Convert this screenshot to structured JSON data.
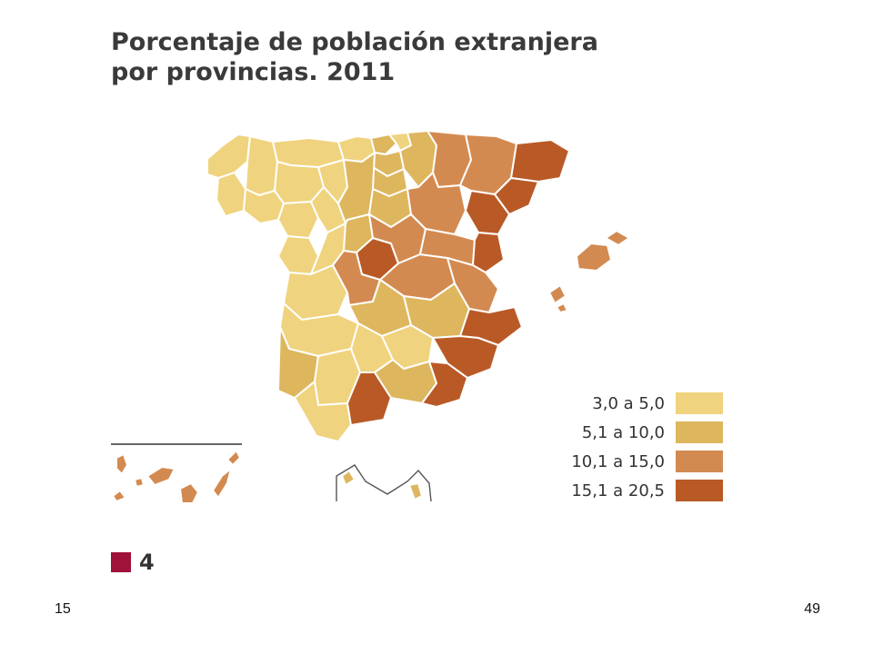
{
  "title_line1": "Porcentaje de población extranjera",
  "title_line2": "por provincias. 2011",
  "legend": [
    {
      "label": "3,0 a 5,0",
      "color": "#f0d37e"
    },
    {
      "label": "5,1 a 10,0",
      "color": "#ddb65e"
    },
    {
      "label": "10,1 a 15,0",
      "color": "#d38a50"
    },
    {
      "label": "15,1 a 20,5",
      "color": "#b95a26"
    }
  ],
  "source_marker": {
    "value": "4",
    "color": "#a0123a"
  },
  "footer_left": "15",
  "footer_right": "49"
}
